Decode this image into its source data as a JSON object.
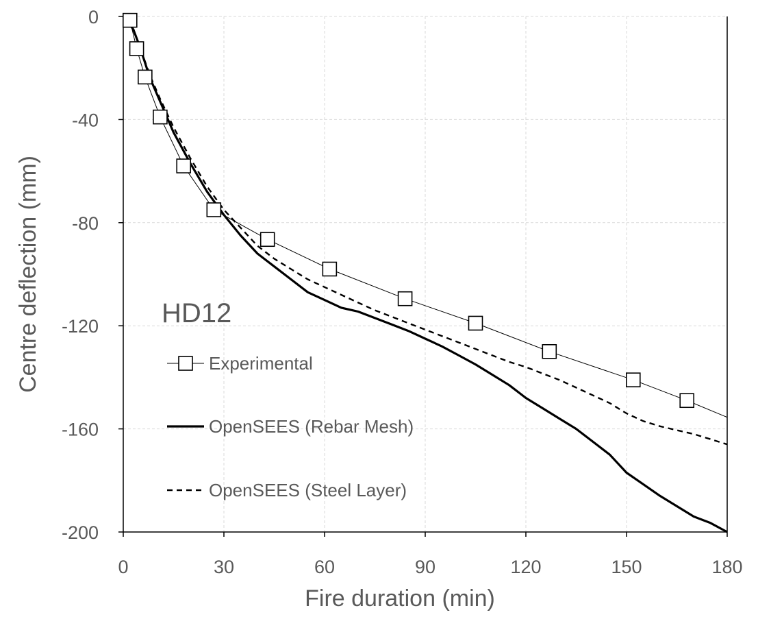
{
  "chart_data": {
    "type": "line",
    "title": "",
    "xlabel": "Fire duration (min)",
    "ylabel": "Centre deflection (mm)",
    "xlim": [
      0,
      180
    ],
    "ylim": [
      -200,
      0
    ],
    "x_ticks": [
      0,
      30,
      60,
      90,
      120,
      150,
      180
    ],
    "y_ticks": [
      0,
      -40,
      -80,
      -120,
      -160,
      -200
    ],
    "grid": true,
    "annotation": "HD12",
    "legend_position": "left",
    "series": [
      {
        "name": "Experimental",
        "style": "thin-line-square-markers",
        "color": "#000000",
        "x": [
          0,
          2,
          4,
          6.5,
          11,
          18,
          27,
          43,
          61.5,
          84,
          105,
          127,
          152,
          168,
          180
        ],
        "y": [
          -1,
          -1.5,
          -12.5,
          -23.5,
          -39,
          -58,
          -75,
          -86.5,
          -98,
          -109.5,
          -119,
          -130,
          -141,
          -149,
          -155.5
        ],
        "markers_x": [
          2,
          4,
          6.5,
          11,
          18,
          27,
          43,
          61.5,
          84,
          105,
          127,
          152,
          168
        ],
        "markers_y": [
          -1.5,
          -12.5,
          -23.5,
          -39,
          -58,
          -75,
          -86.5,
          -98,
          -109.5,
          -119,
          -130,
          -141,
          -149
        ]
      },
      {
        "name": "OpenSEES (Rebar Mesh)",
        "style": "thick-solid",
        "color": "#000000",
        "x": [
          0,
          3,
          5,
          8,
          11,
          15,
          20,
          25,
          30,
          35,
          40,
          45,
          50,
          55,
          60,
          65,
          70,
          75,
          80,
          85,
          90,
          95,
          100,
          105,
          110,
          115,
          120,
          125,
          130,
          135,
          140,
          145,
          150,
          155,
          160,
          165,
          170,
          175,
          180
        ],
        "y": [
          0,
          -5,
          -12,
          -24,
          -33,
          -45,
          -57,
          -68,
          -77,
          -85,
          -92,
          -97,
          -102,
          -107,
          -110,
          -113,
          -114.5,
          -117,
          -119.5,
          -122,
          -125,
          -128,
          -131.5,
          -135,
          -139,
          -143,
          -148,
          -152,
          -156,
          -160,
          -165,
          -170,
          -177,
          -181.5,
          -186,
          -190,
          -194,
          -196.5,
          -200
        ]
      },
      {
        "name": "OpenSEES (Steel Layer)",
        "style": "dashed",
        "color": "#000000",
        "x": [
          0,
          3,
          5,
          8,
          11,
          15,
          20,
          25,
          30,
          35,
          40,
          45,
          50,
          55,
          60,
          65,
          70,
          75,
          80,
          85,
          90,
          95,
          100,
          105,
          110,
          115,
          120,
          125,
          130,
          135,
          140,
          145,
          150,
          155,
          160,
          165,
          170,
          175,
          180
        ],
        "y": [
          0,
          -5,
          -12,
          -23,
          -32,
          -43,
          -55,
          -66,
          -75,
          -82,
          -89,
          -94,
          -98,
          -102,
          -105,
          -108,
          -111,
          -114,
          -116.5,
          -119,
          -121.5,
          -124,
          -126.5,
          -129,
          -131.5,
          -134,
          -136,
          -138.5,
          -141,
          -144,
          -147,
          -150,
          -154,
          -157,
          -159,
          -160.5,
          -162,
          -164,
          -166
        ]
      }
    ]
  }
}
